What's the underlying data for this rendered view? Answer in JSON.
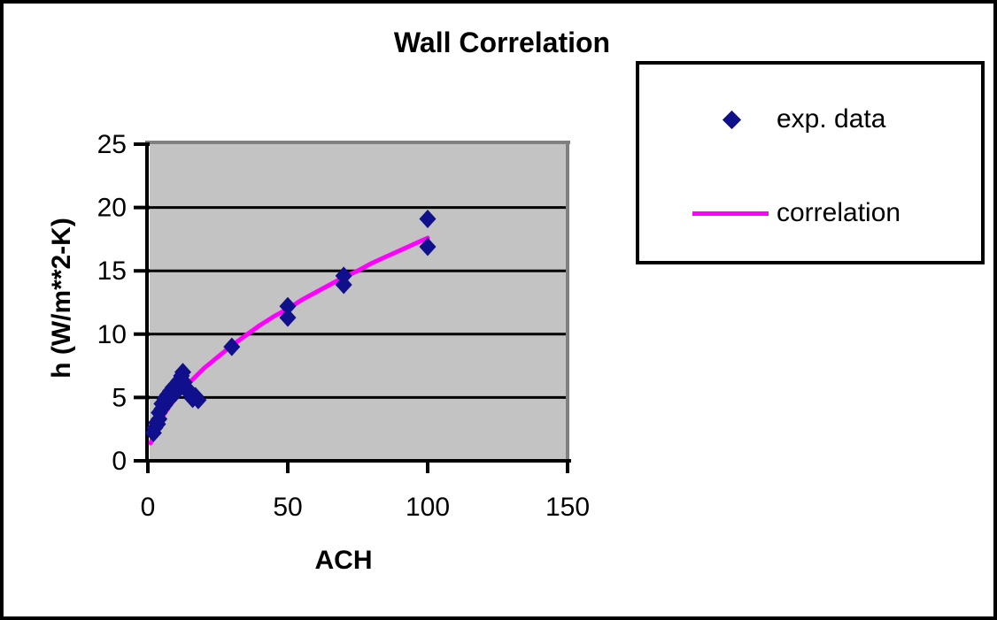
{
  "window": {
    "background": "#ffffff",
    "border_color": "#000000"
  },
  "chart_data": {
    "type": "scatter",
    "title": "Wall Correlation",
    "xlabel": "ACH",
    "ylabel": "h (W/m**2-K)",
    "xlim": [
      0,
      150
    ],
    "ylim": [
      0,
      25
    ],
    "x_ticks": [
      0,
      50,
      100,
      150
    ],
    "y_ticks": [
      0,
      5,
      10,
      15,
      20,
      25
    ],
    "grid": "horizontal-black",
    "plot_bg": "#c3c3c3",
    "plot_border_shadow": "#808080",
    "axis_color": "#000000",
    "legend_position": "top-right",
    "series": [
      {
        "name": "exp. data",
        "type": "scatter",
        "marker": "diamond",
        "color": "#10108c",
        "points": [
          [
            2,
            2.2
          ],
          [
            2.5,
            2.6
          ],
          [
            3,
            3.0
          ],
          [
            3.5,
            2.9
          ],
          [
            4,
            3.3
          ],
          [
            4,
            3.8
          ],
          [
            5,
            4.1
          ],
          [
            5,
            4.5
          ],
          [
            6,
            4.4
          ],
          [
            6,
            4.9
          ],
          [
            7,
            5.2
          ],
          [
            7.5,
            4.8
          ],
          [
            8,
            5.5
          ],
          [
            9,
            5.8
          ],
          [
            10,
            5.4
          ],
          [
            10,
            6.0
          ],
          [
            11,
            6.3
          ],
          [
            12,
            6.7
          ],
          [
            12.5,
            7.0
          ],
          [
            13,
            6.2
          ],
          [
            14,
            5.7
          ],
          [
            15,
            5.3
          ],
          [
            16,
            4.9
          ],
          [
            17,
            5.1
          ],
          [
            18,
            4.8
          ],
          [
            30,
            9.0
          ],
          [
            50,
            11.3
          ],
          [
            50,
            12.2
          ],
          [
            70,
            13.9
          ],
          [
            70,
            14.6
          ],
          [
            100,
            16.9
          ],
          [
            100,
            19.1
          ]
        ]
      },
      {
        "name": "correlation",
        "type": "line",
        "color": "#ff00ff",
        "points": [
          [
            1,
            1.4
          ],
          [
            2,
            2.05
          ],
          [
            3,
            2.6
          ],
          [
            5,
            3.4
          ],
          [
            8,
            4.4
          ],
          [
            10,
            5.0
          ],
          [
            15,
            6.2
          ],
          [
            20,
            7.3
          ],
          [
            25,
            8.2
          ],
          [
            30,
            9.1
          ],
          [
            35,
            9.9
          ],
          [
            40,
            10.7
          ],
          [
            45,
            11.4
          ],
          [
            50,
            12.0
          ],
          [
            55,
            12.7
          ],
          [
            60,
            13.3
          ],
          [
            65,
            13.9
          ],
          [
            70,
            14.5
          ],
          [
            75,
            15.0
          ],
          [
            80,
            15.6
          ],
          [
            85,
            16.1
          ],
          [
            90,
            16.6
          ],
          [
            95,
            17.1
          ],
          [
            100,
            17.6
          ]
        ]
      }
    ]
  },
  "legend": {
    "entries": [
      {
        "label": "exp. data",
        "marker": "diamond",
        "color": "#10108c"
      },
      {
        "label": "correlation",
        "marker": "line",
        "color": "#ff00ff"
      }
    ]
  }
}
